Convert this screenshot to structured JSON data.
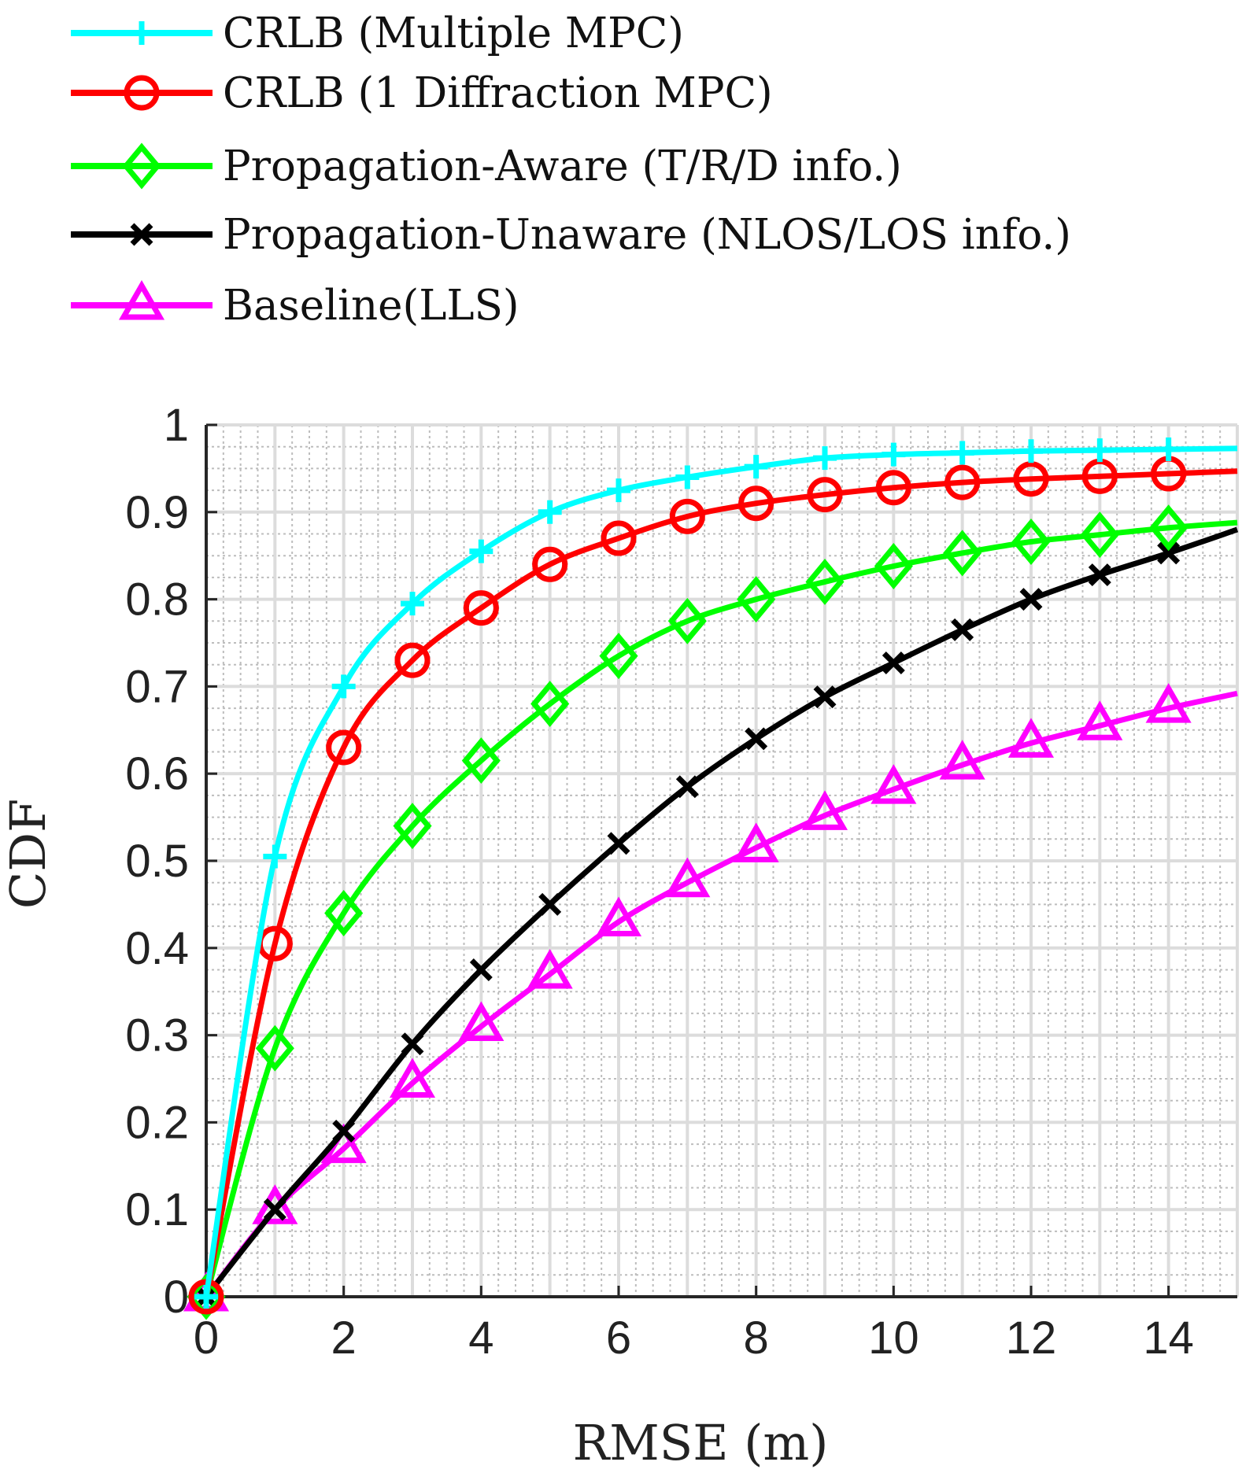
{
  "chart_data": {
    "type": "line",
    "title": "",
    "xlabel": "RMSE (m)",
    "ylabel": "CDF",
    "xlim": [
      0,
      15
    ],
    "ylim": [
      0,
      1
    ],
    "xticks": [
      0,
      2,
      4,
      6,
      8,
      10,
      12,
      14
    ],
    "xtick_labels": [
      "0",
      "2",
      "4",
      "6",
      "8",
      "10",
      "12",
      "14"
    ],
    "yticks": [
      0,
      0.1,
      0.2,
      0.3,
      0.4,
      0.5,
      0.6,
      0.7,
      0.8,
      0.9,
      1
    ],
    "ytick_labels": [
      "0",
      "0.1",
      "0.2",
      "0.3",
      "0.4",
      "0.5",
      "0.6",
      "0.7",
      "0.8",
      "0.9",
      "1"
    ],
    "grid": "major and minor",
    "legend_position": "above plot",
    "series": [
      {
        "name": "CRLB (Multiple MPC)",
        "color": "#00ffff",
        "marker": "plus",
        "x": [
          0,
          1,
          2,
          3,
          4,
          5,
          6,
          7,
          8,
          9,
          10,
          11,
          12,
          13,
          14,
          15
        ],
        "y": [
          0,
          0.505,
          0.7,
          0.795,
          0.855,
          0.9,
          0.925,
          0.94,
          0.952,
          0.962,
          0.966,
          0.968,
          0.97,
          0.971,
          0.972,
          0.973
        ]
      },
      {
        "name": "CRLB (1 Diffraction MPC)",
        "color": "#ff0000",
        "marker": "circle",
        "x": [
          0,
          1,
          2,
          3,
          4,
          5,
          6,
          7,
          8,
          9,
          10,
          11,
          12,
          13,
          14,
          15
        ],
        "y": [
          0,
          0.405,
          0.63,
          0.73,
          0.79,
          0.84,
          0.87,
          0.895,
          0.91,
          0.92,
          0.928,
          0.934,
          0.938,
          0.941,
          0.944,
          0.947
        ]
      },
      {
        "name": "Propagation-Aware (T/R/D info.)",
        "color": "#00ff00",
        "marker": "diamond",
        "x": [
          0,
          1,
          2,
          3,
          4,
          5,
          6,
          7,
          8,
          9,
          10,
          11,
          12,
          13,
          14,
          15
        ],
        "y": [
          0,
          0.285,
          0.44,
          0.54,
          0.615,
          0.68,
          0.735,
          0.775,
          0.8,
          0.82,
          0.838,
          0.853,
          0.866,
          0.874,
          0.882,
          0.888
        ]
      },
      {
        "name": "Propagation-Unaware (NLOS/LOS info.)",
        "color": "#000000",
        "marker": "x",
        "x": [
          0,
          1,
          2,
          3,
          4,
          5,
          6,
          7,
          8,
          9,
          10,
          11,
          12,
          13,
          14,
          15
        ],
        "y": [
          0,
          0.1,
          0.19,
          0.29,
          0.375,
          0.45,
          0.52,
          0.585,
          0.64,
          0.688,
          0.727,
          0.765,
          0.8,
          0.828,
          0.853,
          0.88
        ]
      },
      {
        "name": "Baseline(LLS)",
        "color": "#ff00ff",
        "marker": "triangle",
        "x": [
          0,
          1,
          2,
          3,
          4,
          5,
          6,
          7,
          8,
          9,
          10,
          11,
          12,
          13,
          14,
          15
        ],
        "y": [
          0,
          0.1,
          0.17,
          0.245,
          0.31,
          0.37,
          0.43,
          0.475,
          0.515,
          0.552,
          0.582,
          0.61,
          0.635,
          0.655,
          0.675,
          0.692
        ]
      }
    ]
  }
}
